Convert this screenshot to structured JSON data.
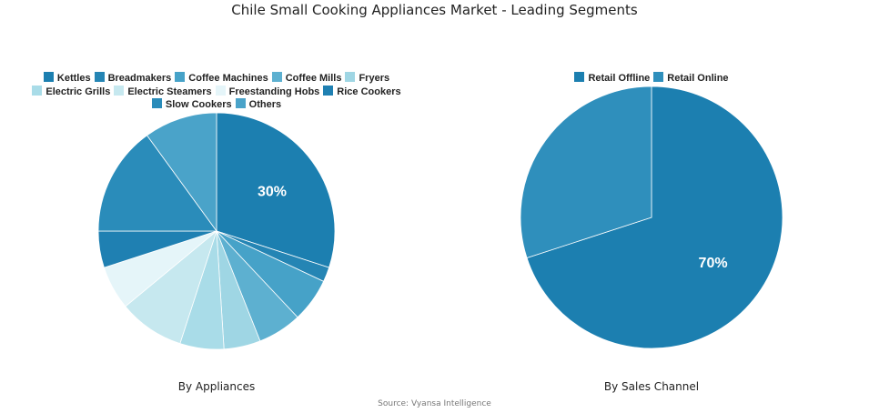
{
  "title": "Chile Small Cooking Appliances Market - Leading Segments",
  "source": "Source: Vyansa Intelligence",
  "chart_data": [
    {
      "type": "pie",
      "caption": "By Appliances",
      "legend_rows": [
        [
          0,
          1,
          2,
          3,
          4
        ],
        [
          5,
          6,
          7,
          8
        ],
        [
          9,
          10
        ]
      ],
      "labels": [
        "Kettles",
        "Breadmakers",
        "Coffee Machines",
        "Coffee Mills",
        "Fryers",
        "Electric Grills",
        "Electric Steamers",
        "Freestanding Hobs",
        "Rice Cookers",
        "Slow Cookers",
        "Others"
      ],
      "values": [
        30,
        2,
        6,
        6,
        5,
        6,
        9,
        6,
        5,
        15,
        10
      ],
      "colors": [
        "#1c7fb0",
        "#2585b4",
        "#46a2c8",
        "#5db0d0",
        "#9fd6e4",
        "#a9dce8",
        "#c6e8ef",
        "#e5f5f9",
        "#1f80b2",
        "#2a8cba",
        "#4aa3c9"
      ],
      "data_labels": [
        "30%",
        "",
        "",
        "",
        "",
        "",
        "",
        "",
        "",
        "",
        ""
      ]
    },
    {
      "type": "pie",
      "caption": "By Sales Channel",
      "legend_rows": [
        [
          0,
          1
        ]
      ],
      "labels": [
        "Retail Offline",
        "Retail Online"
      ],
      "values": [
        70,
        30
      ],
      "colors": [
        "#1c7fb0",
        "#2f8fbc"
      ],
      "data_labels": [
        "70%",
        ""
      ]
    }
  ]
}
